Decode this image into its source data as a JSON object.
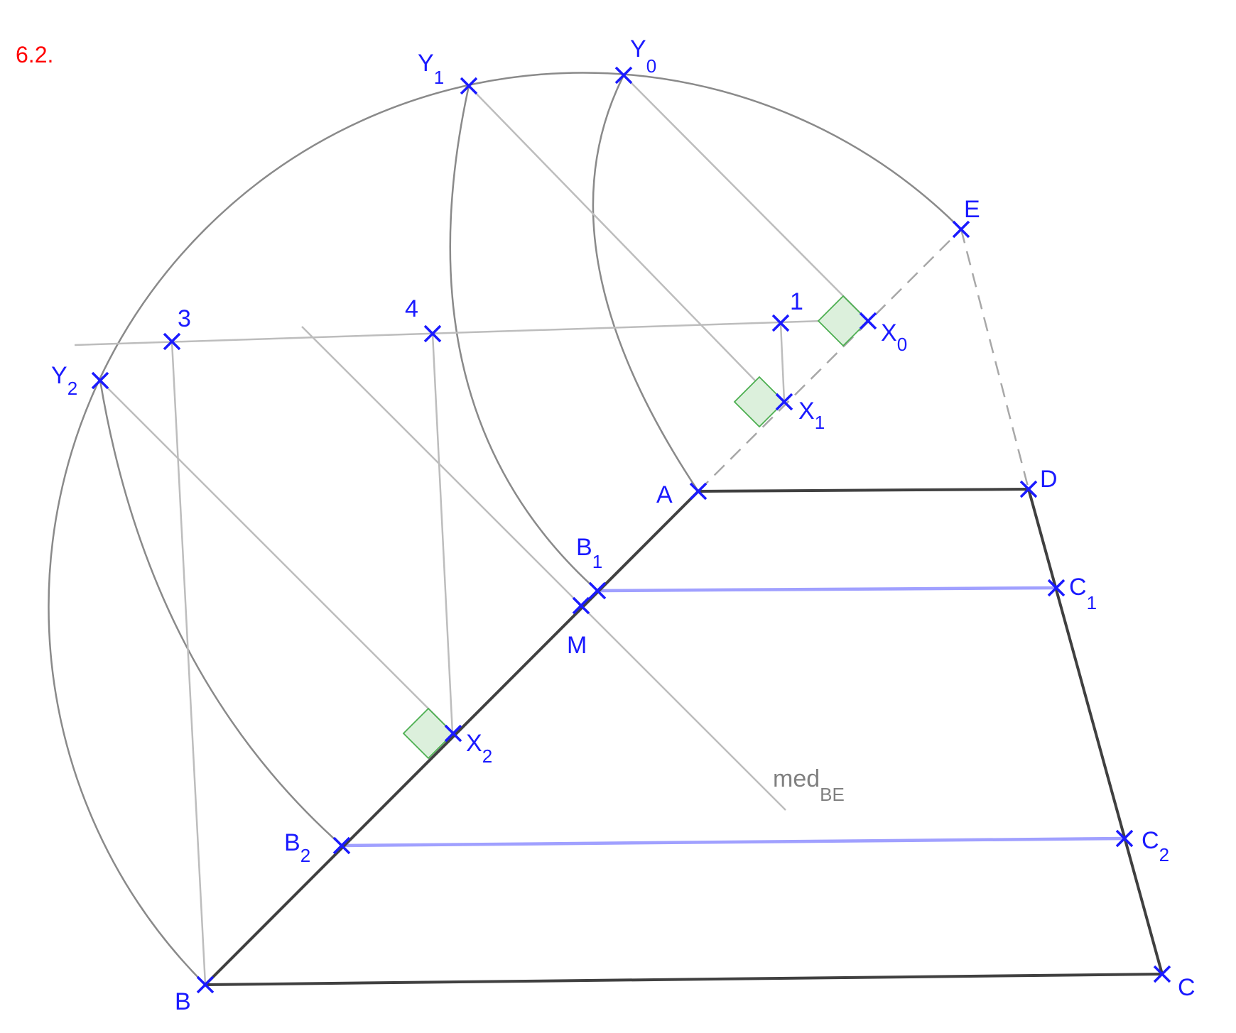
{
  "figure_label": "6.2.",
  "labels": {
    "Y0": {
      "main": "Y",
      "sub": "0"
    },
    "Y1": {
      "main": "Y",
      "sub": "1"
    },
    "Y2": {
      "main": "Y",
      "sub": "2"
    },
    "E": {
      "main": "E",
      "sub": ""
    },
    "P1": {
      "main": "1",
      "sub": ""
    },
    "P3": {
      "main": "3",
      "sub": ""
    },
    "P4": {
      "main": "4",
      "sub": ""
    },
    "X0": {
      "main": "X",
      "sub": "0"
    },
    "X1": {
      "main": "X",
      "sub": "1"
    },
    "X2": {
      "main": "X",
      "sub": "2"
    },
    "A": {
      "main": "A",
      "sub": ""
    },
    "D": {
      "main": "D",
      "sub": ""
    },
    "B1": {
      "main": "B",
      "sub": "1"
    },
    "M": {
      "main": "M",
      "sub": ""
    },
    "C1": {
      "main": "C",
      "sub": "1"
    },
    "B2": {
      "main": "B",
      "sub": "2"
    },
    "C2": {
      "main": "C",
      "sub": "2"
    },
    "B": {
      "main": "B",
      "sub": ""
    },
    "C": {
      "main": "C",
      "sub": ""
    },
    "med": {
      "main": "med",
      "sub": "BE"
    }
  },
  "colors": {
    "point": "#1a1aff",
    "figure_label": "#ff0000",
    "construction": "#bdbdbd",
    "arc": "#8a8a8a",
    "polygon": "#404040",
    "parallel": "#a0a0ff",
    "right_angle_fill": "#dcf0dc",
    "right_angle_stroke": "#4caf50"
  }
}
